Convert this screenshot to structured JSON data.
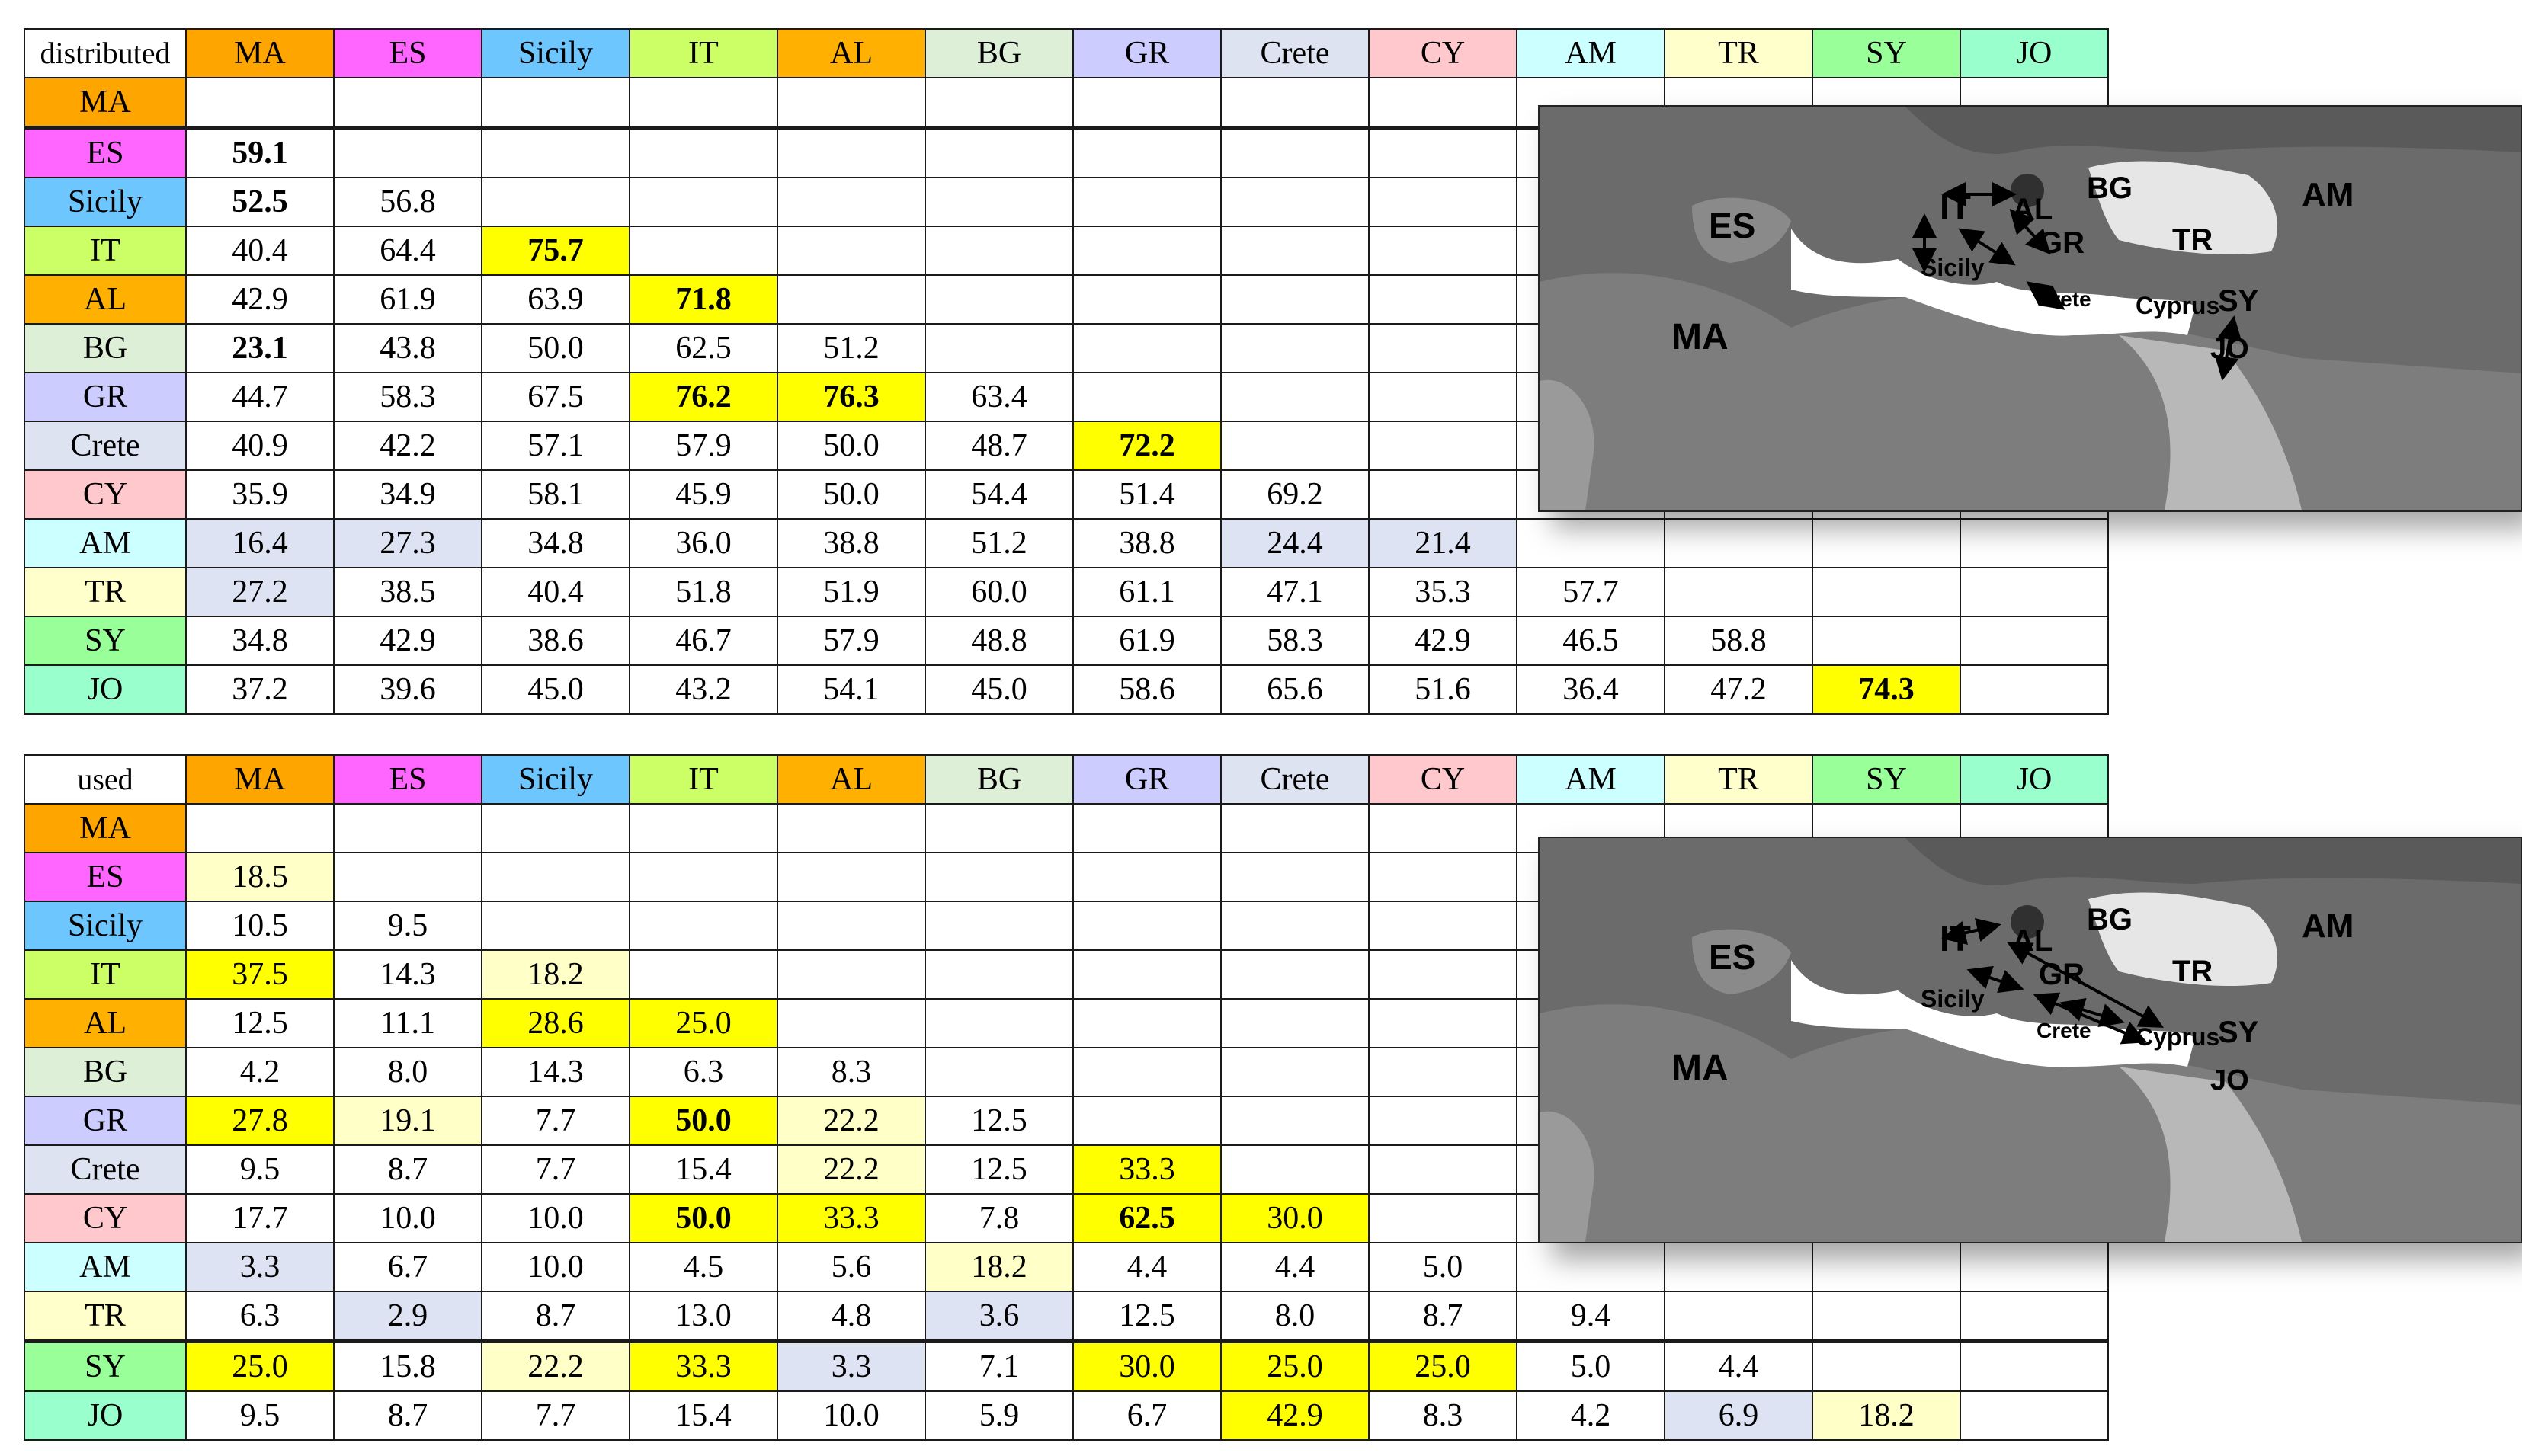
{
  "colors": {
    "yellow": "#ffff00",
    "pale_yellow": "#ffffc8",
    "pale_blue": "#dde3f2",
    "headers": {
      "MA": "#ffa500",
      "ES": "#ff66ff",
      "Sicily": "#6ec6ff",
      "IT": "#ccff66",
      "AL": "#ffb000",
      "BG": "#ddefd6",
      "GR": "#ccccff",
      "Crete": "#dde3f0",
      "CY": "#ffc8cc",
      "AM": "#ccffff",
      "TR": "#ffffcc",
      "SY": "#99ff99",
      "JO": "#99ffcc"
    }
  },
  "columns": [
    "MA",
    "ES",
    "Sicily",
    "IT",
    "AL",
    "BG",
    "GR",
    "Crete",
    "CY",
    "AM",
    "TR",
    "SY",
    "JO"
  ],
  "tables": [
    {
      "corner": "distributed",
      "rows": [
        {
          "label": "MA",
          "cells": []
        },
        {
          "label": "ES",
          "cells": [
            {
              "v": "59.1",
              "b": 1
            }
          ]
        },
        {
          "label": "Sicily",
          "cells": [
            {
              "v": "52.5",
              "b": 1
            },
            {
              "v": "56.8"
            }
          ]
        },
        {
          "label": "IT",
          "cells": [
            {
              "v": "40.4"
            },
            {
              "v": "64.4"
            },
            {
              "v": "75.7",
              "c": "y",
              "b": 1
            }
          ]
        },
        {
          "label": "AL",
          "cells": [
            {
              "v": "42.9"
            },
            {
              "v": "61.9"
            },
            {
              "v": "63.9"
            },
            {
              "v": "71.8",
              "c": "y",
              "b": 1
            }
          ]
        },
        {
          "label": "BG",
          "cells": [
            {
              "v": "23.1",
              "b": 1
            },
            {
              "v": "43.8"
            },
            {
              "v": "50.0"
            },
            {
              "v": "62.5"
            },
            {
              "v": "51.2"
            }
          ]
        },
        {
          "label": "GR",
          "cells": [
            {
              "v": "44.7"
            },
            {
              "v": "58.3"
            },
            {
              "v": "67.5"
            },
            {
              "v": "76.2",
              "c": "y",
              "b": 1
            },
            {
              "v": "76.3",
              "c": "y",
              "b": 1
            },
            {
              "v": "63.4"
            }
          ]
        },
        {
          "label": "Crete",
          "cells": [
            {
              "v": "40.9"
            },
            {
              "v": "42.2"
            },
            {
              "v": "57.1"
            },
            {
              "v": "57.9"
            },
            {
              "v": "50.0"
            },
            {
              "v": "48.7"
            },
            {
              "v": "72.2",
              "c": "y",
              "b": 1
            }
          ]
        },
        {
          "label": "CY",
          "cells": [
            {
              "v": "35.9"
            },
            {
              "v": "34.9"
            },
            {
              "v": "58.1"
            },
            {
              "v": "45.9"
            },
            {
              "v": "50.0"
            },
            {
              "v": "54.4"
            },
            {
              "v": "51.4"
            },
            {
              "v": "69.2"
            }
          ]
        },
        {
          "label": "AM",
          "cells": [
            {
              "v": "16.4",
              "c": "pb"
            },
            {
              "v": "27.3",
              "c": "pb"
            },
            {
              "v": "34.8"
            },
            {
              "v": "36.0"
            },
            {
              "v": "38.8"
            },
            {
              "v": "51.2"
            },
            {
              "v": "38.8"
            },
            {
              "v": "24.4",
              "c": "pb"
            },
            {
              "v": "21.4",
              "c": "pb"
            }
          ]
        },
        {
          "label": "TR",
          "cells": [
            {
              "v": "27.2",
              "c": "pb"
            },
            {
              "v": "38.5"
            },
            {
              "v": "40.4"
            },
            {
              "v": "51.8"
            },
            {
              "v": "51.9"
            },
            {
              "v": "60.0"
            },
            {
              "v": "61.1"
            },
            {
              "v": "47.1"
            },
            {
              "v": "35.3"
            },
            {
              "v": "57.7"
            }
          ]
        },
        {
          "label": "SY",
          "cells": [
            {
              "v": "34.8"
            },
            {
              "v": "42.9"
            },
            {
              "v": "38.6"
            },
            {
              "v": "46.7"
            },
            {
              "v": "57.9"
            },
            {
              "v": "48.8"
            },
            {
              "v": "61.9"
            },
            {
              "v": "58.3"
            },
            {
              "v": "42.9"
            },
            {
              "v": "46.5"
            },
            {
              "v": "58.8"
            }
          ]
        },
        {
          "label": "JO",
          "cells": [
            {
              "v": "37.2"
            },
            {
              "v": "39.6"
            },
            {
              "v": "45.0"
            },
            {
              "v": "43.2"
            },
            {
              "v": "54.1"
            },
            {
              "v": "45.0"
            },
            {
              "v": "58.6"
            },
            {
              "v": "65.6"
            },
            {
              "v": "51.6"
            },
            {
              "v": "36.4"
            },
            {
              "v": "47.2"
            },
            {
              "v": "74.3",
              "c": "y",
              "b": 1
            }
          ]
        }
      ]
    },
    {
      "corner": "used",
      "rows": [
        {
          "label": "MA",
          "cells": []
        },
        {
          "label": "ES",
          "cells": [
            {
              "v": "18.5",
              "c": "py"
            }
          ]
        },
        {
          "label": "Sicily",
          "cells": [
            {
              "v": "10.5"
            },
            {
              "v": "9.5"
            }
          ]
        },
        {
          "label": "IT",
          "cells": [
            {
              "v": "37.5",
              "c": "y"
            },
            {
              "v": "14.3"
            },
            {
              "v": "18.2",
              "c": "py"
            }
          ]
        },
        {
          "label": "AL",
          "cells": [
            {
              "v": "12.5"
            },
            {
              "v": "11.1"
            },
            {
              "v": "28.6",
              "c": "y"
            },
            {
              "v": "25.0",
              "c": "y"
            }
          ]
        },
        {
          "label": "BG",
          "cells": [
            {
              "v": "4.2"
            },
            {
              "v": "8.0"
            },
            {
              "v": "14.3"
            },
            {
              "v": "6.3"
            },
            {
              "v": "8.3"
            }
          ]
        },
        {
          "label": "GR",
          "cells": [
            {
              "v": "27.8",
              "c": "y"
            },
            {
              "v": "19.1",
              "c": "py"
            },
            {
              "v": "7.7"
            },
            {
              "v": "50.0",
              "c": "y",
              "b": 1
            },
            {
              "v": "22.2",
              "c": "py"
            },
            {
              "v": "12.5"
            }
          ]
        },
        {
          "label": "Crete",
          "cells": [
            {
              "v": "9.5"
            },
            {
              "v": "8.7"
            },
            {
              "v": "7.7"
            },
            {
              "v": "15.4"
            },
            {
              "v": "22.2",
              "c": "py"
            },
            {
              "v": "12.5"
            },
            {
              "v": "33.3",
              "c": "y"
            }
          ]
        },
        {
          "label": "CY",
          "cells": [
            {
              "v": "17.7"
            },
            {
              "v": "10.0"
            },
            {
              "v": "10.0"
            },
            {
              "v": "50.0",
              "c": "y",
              "b": 1
            },
            {
              "v": "33.3",
              "c": "y"
            },
            {
              "v": "7.8"
            },
            {
              "v": "62.5",
              "c": "y",
              "b": 1
            },
            {
              "v": "30.0",
              "c": "y"
            }
          ]
        },
        {
          "label": "AM",
          "cells": [
            {
              "v": "3.3",
              "c": "pb"
            },
            {
              "v": "6.7"
            },
            {
              "v": "10.0"
            },
            {
              "v": "4.5"
            },
            {
              "v": "5.6"
            },
            {
              "v": "18.2",
              "c": "py"
            },
            {
              "v": "4.4"
            },
            {
              "v": "4.4"
            },
            {
              "v": "5.0"
            }
          ]
        },
        {
          "label": "TR",
          "cells": [
            {
              "v": "6.3"
            },
            {
              "v": "2.9",
              "c": "pb"
            },
            {
              "v": "8.7"
            },
            {
              "v": "13.0"
            },
            {
              "v": "4.8"
            },
            {
              "v": "3.6",
              "c": "pb"
            },
            {
              "v": "12.5"
            },
            {
              "v": "8.0"
            },
            {
              "v": "8.7"
            },
            {
              "v": "9.4"
            }
          ]
        },
        {
          "label": "SY",
          "cells": [
            {
              "v": "25.0",
              "c": "y"
            },
            {
              "v": "15.8"
            },
            {
              "v": "22.2",
              "c": "py"
            },
            {
              "v": "33.3",
              "c": "y"
            },
            {
              "v": "3.3",
              "c": "pb"
            },
            {
              "v": "7.1"
            },
            {
              "v": "30.0",
              "c": "y"
            },
            {
              "v": "25.0",
              "c": "y"
            },
            {
              "v": "25.0",
              "c": "y"
            },
            {
              "v": "5.0"
            },
            {
              "v": "4.4"
            }
          ]
        },
        {
          "label": "JO",
          "cells": [
            {
              "v": "9.5"
            },
            {
              "v": "8.7"
            },
            {
              "v": "7.7"
            },
            {
              "v": "15.4"
            },
            {
              "v": "10.0"
            },
            {
              "v": "5.9"
            },
            {
              "v": "6.7"
            },
            {
              "v": "42.9",
              "c": "y"
            },
            {
              "v": "8.3"
            },
            {
              "v": "4.2"
            },
            {
              "v": "6.9",
              "c": "pb"
            },
            {
              "v": "18.2",
              "c": "py"
            }
          ]
        }
      ]
    }
  ],
  "maps": [
    {
      "labels": {
        "ES": "ES",
        "MA": "MA",
        "IT": "IT",
        "AL": "AL",
        "BG": "BG",
        "GR": "GR",
        "TR": "TR",
        "AM": "AM",
        "Sicily": "Sicily",
        "Crete": "Crete",
        "Cyprus": "Cyprus",
        "SY": "SY",
        "JO": "JO"
      }
    },
    {
      "labels": {
        "ES": "ES",
        "MA": "MA",
        "IT": "IT",
        "AL": "AL",
        "BG": "BG",
        "GR": "GR",
        "TR": "TR",
        "AM": "AM",
        "Sicily": "Sicily",
        "Crete": "Crete",
        "Cyprus": "Cyprus",
        "SY": "SY",
        "JO": "JO"
      }
    }
  ]
}
